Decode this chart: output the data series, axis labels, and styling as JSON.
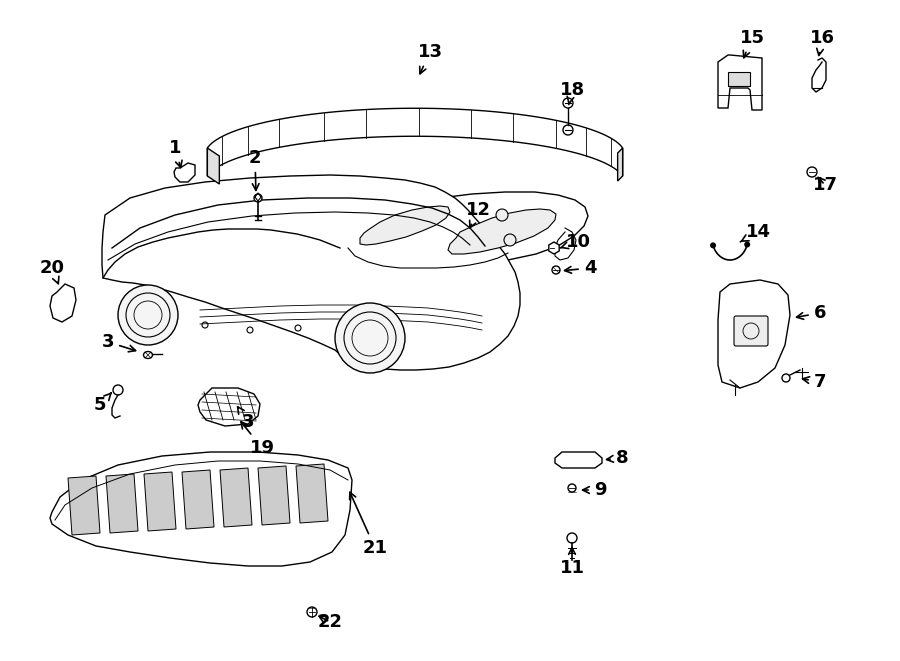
{
  "bg_color": "#ffffff",
  "line_color": "#000000",
  "lw": 1.0
}
